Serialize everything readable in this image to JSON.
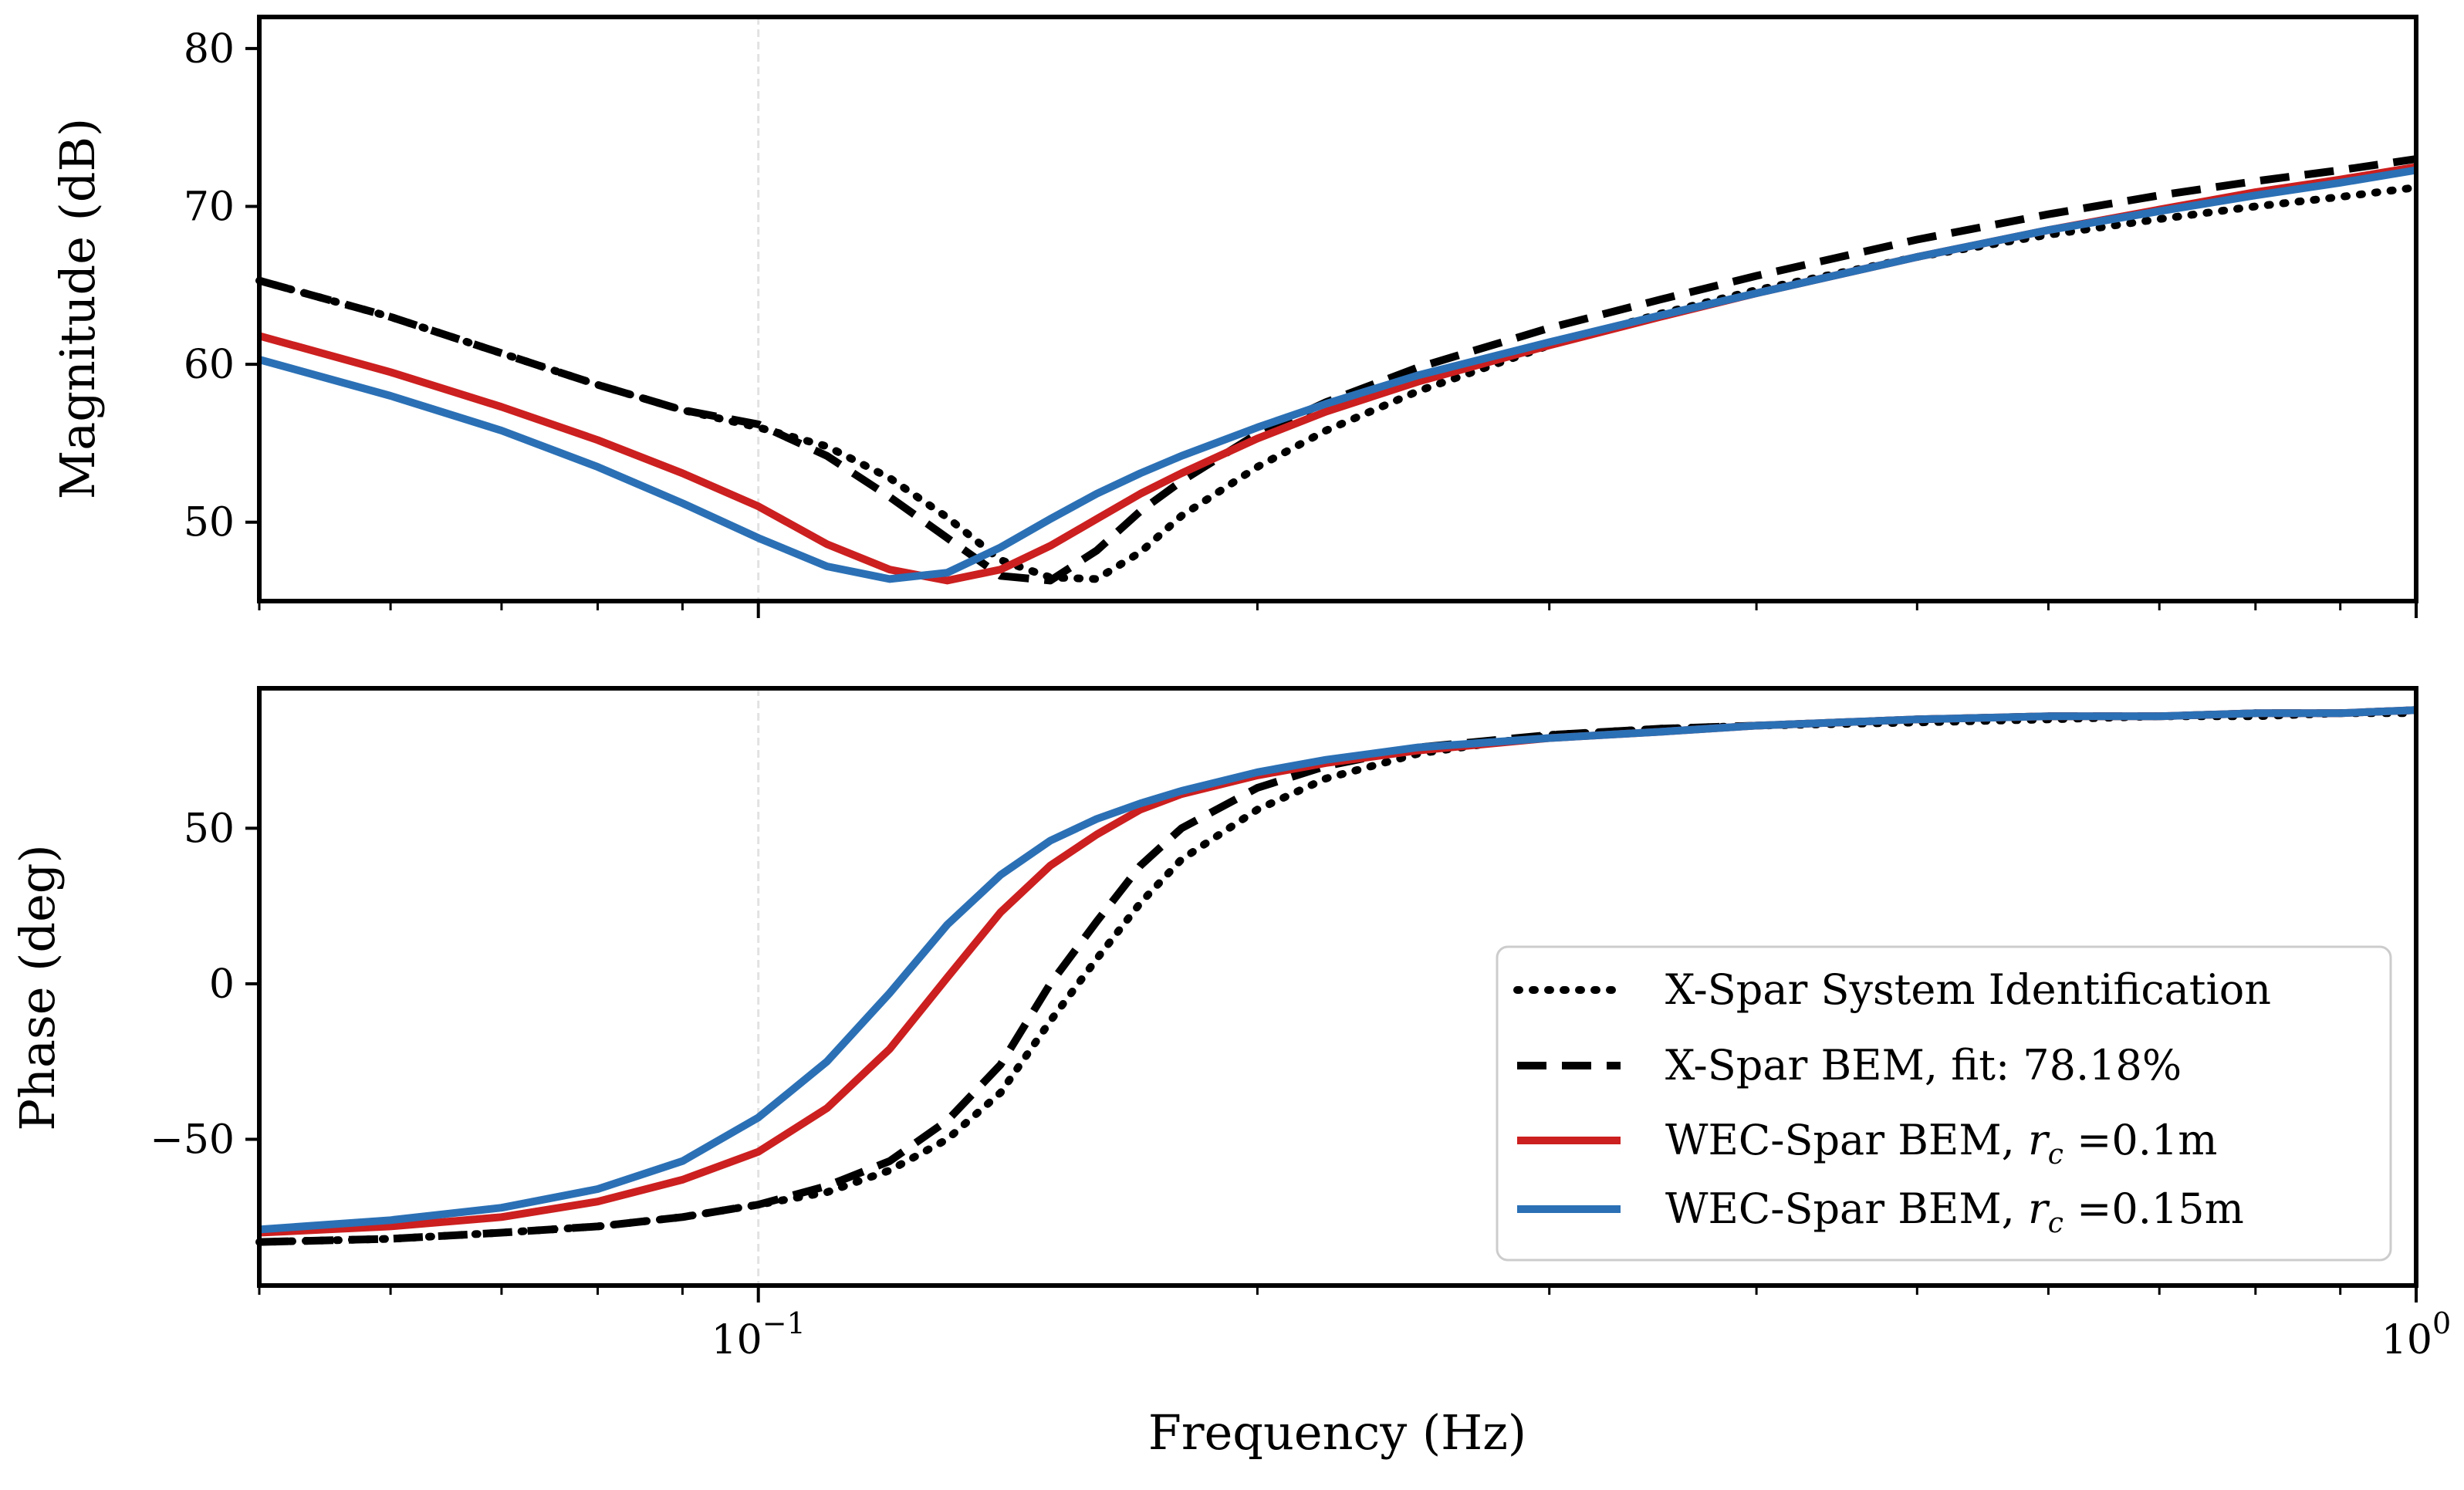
{
  "chart_data": [
    {
      "id": "magnitude",
      "type": "line",
      "xscale": "log",
      "xlim": [
        0.05,
        1.0
      ],
      "ylim": [
        45,
        82
      ],
      "ylabel": "Magnitude (dB)",
      "xlabel": "",
      "yticks": [
        50,
        60,
        70,
        80
      ],
      "ytick_labels": [
        "50",
        "60",
        "70",
        "80"
      ],
      "xticks": [
        0.1,
        1.0
      ],
      "vline": 0.1,
      "series": [
        {
          "name": "X-Spar System Identification",
          "color": "#000000",
          "style": "dotted",
          "x": [
            0.05,
            0.06,
            0.07,
            0.08,
            0.09,
            0.1,
            0.11,
            0.12,
            0.13,
            0.14,
            0.15,
            0.16,
            0.17,
            0.18,
            0.2,
            0.22,
            0.25,
            0.3,
            0.35,
            0.4,
            0.5,
            0.6,
            0.7,
            0.8,
            0.9,
            1.0
          ],
          "y": [
            65.3,
            63.0,
            60.7,
            58.7,
            57.1,
            56.0,
            54.8,
            52.8,
            50.3,
            47.6,
            46.5,
            46.4,
            48.1,
            50.4,
            53.5,
            55.8,
            58.3,
            61.2,
            63.2,
            64.7,
            66.8,
            68.2,
            69.2,
            70.0,
            70.6,
            71.2
          ]
        },
        {
          "name": "X-Spar BEM, fit: 78.18%",
          "color": "#000000",
          "style": "dashed",
          "x": [
            0.05,
            0.06,
            0.07,
            0.08,
            0.09,
            0.1,
            0.11,
            0.12,
            0.13,
            0.14,
            0.15,
            0.16,
            0.17,
            0.18,
            0.2,
            0.22,
            0.25,
            0.3,
            0.35,
            0.4,
            0.5,
            0.6,
            0.7,
            0.8,
            0.9,
            1.0
          ],
          "y": [
            65.3,
            63.0,
            60.7,
            58.7,
            57.1,
            56.2,
            54.2,
            51.6,
            49.0,
            46.6,
            46.3,
            48.2,
            50.7,
            52.6,
            55.6,
            57.6,
            59.8,
            62.3,
            64.1,
            65.6,
            67.9,
            69.5,
            70.7,
            71.6,
            72.3,
            73.0
          ]
        },
        {
          "name": "WEC-Spar BEM, r_c =0.1m",
          "color": "#cc1f1f",
          "style": "solid",
          "x": [
            0.05,
            0.06,
            0.07,
            0.08,
            0.09,
            0.1,
            0.11,
            0.12,
            0.13,
            0.14,
            0.15,
            0.16,
            0.17,
            0.18,
            0.2,
            0.22,
            0.25,
            0.3,
            0.35,
            0.4,
            0.5,
            0.6,
            0.7,
            0.8,
            0.9,
            1.0
          ],
          "y": [
            61.8,
            59.5,
            57.3,
            55.2,
            53.1,
            51.0,
            48.6,
            47.0,
            46.3,
            47.0,
            48.5,
            50.2,
            51.8,
            53.1,
            55.3,
            57.0,
            58.9,
            61.2,
            63.0,
            64.5,
            66.8,
            68.5,
            69.8,
            70.9,
            71.7,
            72.5
          ]
        },
        {
          "name": "WEC-Spar BEM, r_c =0.15m",
          "color": "#2b70b5",
          "style": "solid",
          "x": [
            0.05,
            0.06,
            0.07,
            0.08,
            0.09,
            0.1,
            0.11,
            0.12,
            0.13,
            0.14,
            0.15,
            0.16,
            0.17,
            0.18,
            0.2,
            0.22,
            0.25,
            0.3,
            0.35,
            0.4,
            0.5,
            0.6,
            0.7,
            0.8,
            0.9,
            1.0
          ],
          "y": [
            60.3,
            58.0,
            55.8,
            53.5,
            51.2,
            49.0,
            47.2,
            46.4,
            46.8,
            48.4,
            50.2,
            51.8,
            53.1,
            54.2,
            56.0,
            57.5,
            59.3,
            61.4,
            63.1,
            64.5,
            66.8,
            68.5,
            69.7,
            70.7,
            71.5,
            72.3
          ]
        }
      ]
    },
    {
      "id": "phase",
      "type": "line",
      "xscale": "log",
      "xlim": [
        0.05,
        1.0
      ],
      "ylim": [
        -97,
        95
      ],
      "ylabel": "Phase (deg)",
      "xlabel": "Frequency (Hz)",
      "yticks": [
        -50,
        0,
        50
      ],
      "ytick_labels": [
        "−50",
        "0",
        "50"
      ],
      "xticks": [
        0.1,
        1.0
      ],
      "xtick_labels": [
        {
          "base": "10",
          "exp": "−1"
        },
        {
          "base": "10",
          "exp": "0"
        }
      ],
      "vline": 0.1,
      "legend": {
        "location": "lower-right"
      },
      "series": [
        {
          "name": "X-Spar System Identification",
          "color": "#000000",
          "style": "dotted",
          "x": [
            0.05,
            0.06,
            0.07,
            0.08,
            0.09,
            0.1,
            0.11,
            0.12,
            0.13,
            0.14,
            0.15,
            0.16,
            0.17,
            0.18,
            0.2,
            0.22,
            0.25,
            0.3,
            0.35,
            0.4,
            0.5,
            0.6,
            0.7,
            0.8,
            0.9,
            1.0
          ],
          "y": [
            -83,
            -82,
            -80,
            -78,
            -75,
            -71,
            -67,
            -60,
            -50,
            -35,
            -12,
            8,
            26,
            40,
            56,
            66,
            74,
            80,
            82,
            83,
            84,
            85,
            86,
            86,
            87,
            87
          ]
        },
        {
          "name": "X-Spar BEM, fit: 78.18%",
          "color": "#000000",
          "style": "dashed",
          "x": [
            0.05,
            0.06,
            0.07,
            0.08,
            0.09,
            0.1,
            0.11,
            0.12,
            0.13,
            0.14,
            0.15,
            0.16,
            0.17,
            0.18,
            0.2,
            0.22,
            0.25,
            0.3,
            0.35,
            0.4,
            0.5,
            0.6,
            0.7,
            0.8,
            0.9,
            1.0
          ],
          "y": [
            -83,
            -82,
            -80,
            -78,
            -75,
            -71,
            -65,
            -57,
            -44,
            -26,
            0,
            20,
            38,
            50,
            63,
            70,
            76,
            80,
            82,
            83,
            85,
            86,
            86,
            87,
            87,
            88
          ]
        },
        {
          "name": "WEC-Spar BEM, r_c =0.1m",
          "color": "#cc1f1f",
          "style": "solid",
          "x": [
            0.05,
            0.06,
            0.07,
            0.08,
            0.09,
            0.1,
            0.11,
            0.12,
            0.13,
            0.14,
            0.15,
            0.16,
            0.17,
            0.18,
            0.2,
            0.22,
            0.25,
            0.3,
            0.35,
            0.4,
            0.5,
            0.6,
            0.7,
            0.8,
            0.9,
            1.0
          ],
          "y": [
            -80,
            -78,
            -75,
            -70,
            -63,
            -54,
            -40,
            -21,
            2,
            23,
            38,
            48,
            56,
            61,
            67,
            71,
            75,
            79,
            81,
            83,
            85,
            86,
            86,
            87,
            87,
            88
          ]
        },
        {
          "name": "WEC-Spar BEM, r_c =0.15m",
          "color": "#2b70b5",
          "style": "solid",
          "x": [
            0.05,
            0.06,
            0.07,
            0.08,
            0.09,
            0.1,
            0.11,
            0.12,
            0.13,
            0.14,
            0.15,
            0.16,
            0.17,
            0.18,
            0.2,
            0.22,
            0.25,
            0.3,
            0.35,
            0.4,
            0.5,
            0.6,
            0.7,
            0.8,
            0.9,
            1.0
          ],
          "y": [
            -79,
            -76,
            -72,
            -66,
            -57,
            -43,
            -25,
            -3,
            19,
            35,
            46,
            53,
            58,
            62,
            68,
            72,
            76,
            79,
            81,
            83,
            85,
            86,
            86,
            87,
            87,
            88
          ]
        }
      ]
    }
  ],
  "legend_entries": [
    {
      "text": "X-Spar System Identification",
      "color": "#000000",
      "style": "dotted"
    },
    {
      "text": "X-Spar BEM, fit: 78.18%",
      "color": "#000000",
      "style": "dashed"
    },
    {
      "text_pre": "WEC-Spar BEM, ",
      "var": "r",
      "sub": "c",
      "text_post": " =0.1m",
      "color": "#cc1f1f",
      "style": "solid"
    },
    {
      "text_pre": "WEC-Spar BEM, ",
      "var": "r",
      "sub": "c",
      "text_post": " =0.15m",
      "color": "#2b70b5",
      "style": "solid"
    }
  ]
}
